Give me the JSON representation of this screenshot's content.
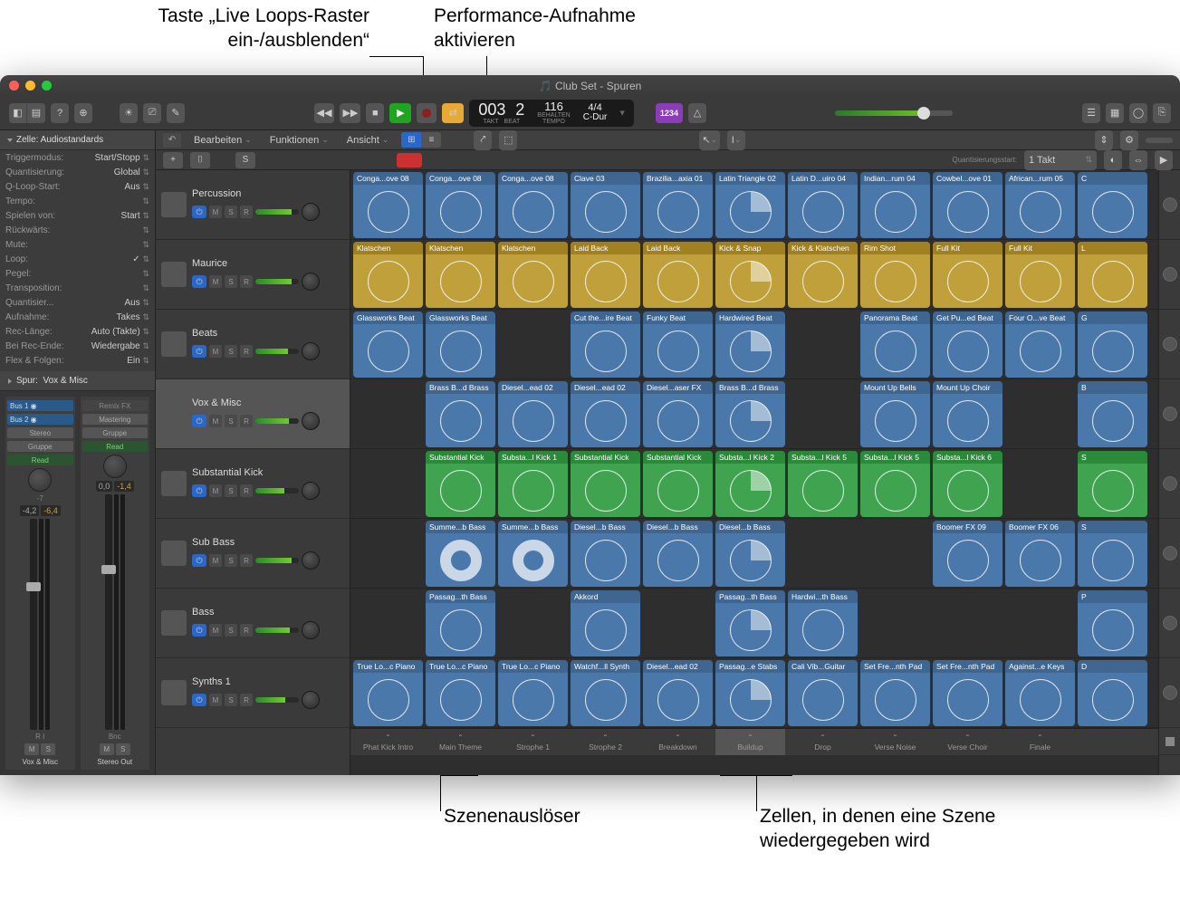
{
  "annotations": {
    "top_left": "Taste „Live Loops-Raster\nein-/ausblenden“",
    "top_right": "Performance-Aufnahme\naktivieren",
    "bottom_left": "Szenenauslöser",
    "bottom_right": "Zellen, in denen eine Szene\nwiedergegeben wird"
  },
  "window": {
    "title": "Club Set - Spuren"
  },
  "lcd": {
    "bars": "003",
    "beat": "2",
    "tempo": "116",
    "tempo_sub": "Behalten",
    "sig": "4/4",
    "key": "C-Dur",
    "purple": "1234",
    "lbl_takt": "TAKT",
    "lbl_beat": "BEAT",
    "lbl_tempo": "TEMPO"
  },
  "inspector": {
    "header": "Zelle: Audiostandards",
    "rows": [
      {
        "l": "Triggermodus:",
        "v": "Start/Stopp"
      },
      {
        "l": "Quantisierung:",
        "v": "Global"
      },
      {
        "l": "Q-Loop-Start:",
        "v": "Aus"
      },
      {
        "l": "Tempo:",
        "v": ""
      },
      {
        "l": "Spielen von:",
        "v": "Start"
      },
      {
        "l": "Rückwärts:",
        "v": ""
      },
      {
        "l": "Mute:",
        "v": ""
      },
      {
        "l": "Loop:",
        "v": "✓"
      },
      {
        "l": "Pegel:",
        "v": ""
      },
      {
        "l": "Transposition:",
        "v": ""
      },
      {
        "l": "Quantisier...",
        "v": "Aus"
      },
      {
        "l": "Aufnahme:",
        "v": "Takes"
      },
      {
        "l": "Rec-Länge:",
        "v": "Auto (Takte)"
      },
      {
        "l": "Bei Rec-Ende:",
        "v": "Wiedergabe"
      },
      {
        "l": "Flex & Folgen:",
        "v": "Ein"
      }
    ],
    "spur_label": "Spur:",
    "spur_value": "Vox & Misc"
  },
  "channel_strips": [
    {
      "name": "Vox & Misc",
      "sends": [
        "Bus 1",
        "Bus 2"
      ],
      "io": "Stereo",
      "grp": "Gruppe",
      "auto": "Read",
      "pan": "-7",
      "db1": "-4,2",
      "db2": "-6,4",
      "bottom": "R  I"
    },
    {
      "name": "Stereo Out",
      "insert": "Mastering",
      "io": "",
      "grp": "Gruppe",
      "auto": "Read",
      "pan": "",
      "db1": "0,0",
      "db2": "-1,4",
      "bottom": "Bnc"
    }
  ],
  "menus": {
    "bearbeiten": "Bearbeiten",
    "funktionen": "Funktionen",
    "ansicht": "Ansicht",
    "quant_label": "Quantisierungsstart:",
    "quant_val": "1 Takt",
    "solo": "S"
  },
  "tracks": [
    {
      "name": "Percussion"
    },
    {
      "name": "Maurice"
    },
    {
      "name": "Beats"
    },
    {
      "name": "Vox & Misc",
      "sel": true
    },
    {
      "name": "Substantial Kick"
    },
    {
      "name": "Sub Bass"
    },
    {
      "name": "Bass"
    },
    {
      "name": "Synths 1"
    }
  ],
  "cell_rows": [
    [
      {
        "t": "Conga...ove 08",
        "c": "blue"
      },
      {
        "t": "Conga...ove 08",
        "c": "blue"
      },
      {
        "t": "Conga...ove 08",
        "c": "blue"
      },
      {
        "t": "Clave 03",
        "c": "blue"
      },
      {
        "t": "Brazilia...axia 01",
        "c": "blue"
      },
      {
        "t": "Latin Triangle 02",
        "c": "blue",
        "p": 1
      },
      {
        "t": "Latin D...uiro 04",
        "c": "blue"
      },
      {
        "t": "Indian...rum 04",
        "c": "blue"
      },
      {
        "t": "Cowbel...ove 01",
        "c": "blue"
      },
      {
        "t": "African...rum 05",
        "c": "blue"
      },
      {
        "t": "C",
        "c": "blue"
      }
    ],
    [
      {
        "t": "Klatschen",
        "c": "yellow"
      },
      {
        "t": "Klatschen",
        "c": "yellow"
      },
      {
        "t": "Klatschen",
        "c": "yellow"
      },
      {
        "t": "Laid Back",
        "c": "yellow"
      },
      {
        "t": "Laid Back",
        "c": "yellow"
      },
      {
        "t": "Kick & Snap",
        "c": "yellow",
        "p": 1
      },
      {
        "t": "Kick & Klatschen",
        "c": "yellow"
      },
      {
        "t": "Rim Shot",
        "c": "yellow"
      },
      {
        "t": "Full Kit",
        "c": "yellow"
      },
      {
        "t": "Full Kit",
        "c": "yellow"
      },
      {
        "t": "L",
        "c": "yellow"
      }
    ],
    [
      {
        "t": "Glassworks Beat",
        "c": "blue"
      },
      {
        "t": "Glassworks Beat",
        "c": "blue"
      },
      {
        "c": "empty"
      },
      {
        "t": "Cut the...ire Beat",
        "c": "blue"
      },
      {
        "t": "Funky Beat",
        "c": "blue"
      },
      {
        "t": "Hardwired Beat",
        "c": "blue",
        "p": 1
      },
      {
        "c": "empty"
      },
      {
        "t": "Panorama Beat",
        "c": "blue"
      },
      {
        "t": "Get Pu...ed Beat",
        "c": "blue"
      },
      {
        "t": "Four O...ve Beat",
        "c": "blue"
      },
      {
        "t": "G",
        "c": "blue"
      }
    ],
    [
      {
        "c": "empty"
      },
      {
        "t": "Brass B...d Brass",
        "c": "blue"
      },
      {
        "t": "Diesel...ead 02",
        "c": "blue"
      },
      {
        "t": "Diesel...ead 02",
        "c": "blue"
      },
      {
        "t": "Diesel...aser FX",
        "c": "blue"
      },
      {
        "t": "Brass B...d Brass",
        "c": "blue",
        "p": 1
      },
      {
        "c": "empty"
      },
      {
        "t": "Mount Up Bells",
        "c": "blue"
      },
      {
        "t": "Mount Up Choir",
        "c": "blue"
      },
      {
        "c": "empty"
      },
      {
        "t": "B",
        "c": "blue"
      }
    ],
    [
      {
        "c": "empty"
      },
      {
        "t": "Substantial Kick",
        "c": "green"
      },
      {
        "t": "Substa...l Kick 1",
        "c": "green"
      },
      {
        "t": "Substantial Kick",
        "c": "green"
      },
      {
        "t": "Substantial Kick",
        "c": "green"
      },
      {
        "t": "Substa...l Kick 2",
        "c": "green",
        "p": 1
      },
      {
        "t": "Substa...l Kick 5",
        "c": "green"
      },
      {
        "t": "Substa...l Kick 5",
        "c": "green"
      },
      {
        "t": "Substa...l Kick 6",
        "c": "green"
      },
      {
        "c": "empty"
      },
      {
        "t": "S",
        "c": "green"
      }
    ],
    [
      {
        "c": "empty"
      },
      {
        "t": "Summe...b Bass",
        "c": "blue",
        "d": 1
      },
      {
        "t": "Summe...b Bass",
        "c": "blue",
        "d": 1
      },
      {
        "t": "Diesel...b Bass",
        "c": "blue"
      },
      {
        "t": "Diesel...b Bass",
        "c": "blue"
      },
      {
        "t": "Diesel...b Bass",
        "c": "blue",
        "p": 1
      },
      {
        "c": "empty"
      },
      {
        "c": "empty"
      },
      {
        "t": "Boomer FX 09",
        "c": "blue"
      },
      {
        "t": "Boomer FX 06",
        "c": "blue"
      },
      {
        "t": "S",
        "c": "blue"
      }
    ],
    [
      {
        "c": "empty"
      },
      {
        "t": "Passag...th Bass",
        "c": "blue"
      },
      {
        "c": "empty"
      },
      {
        "t": "Akkord",
        "c": "blue"
      },
      {
        "c": "empty"
      },
      {
        "t": "Passag...th Bass",
        "c": "blue",
        "p": 1
      },
      {
        "t": "Hardwi...th Bass",
        "c": "blue"
      },
      {
        "c": "empty"
      },
      {
        "c": "empty"
      },
      {
        "c": "empty"
      },
      {
        "t": "P",
        "c": "blue"
      }
    ],
    [
      {
        "t": "True Lo...c Piano",
        "c": "blue"
      },
      {
        "t": "True Lo...c Piano",
        "c": "blue"
      },
      {
        "t": "True Lo...c Piano",
        "c": "blue"
      },
      {
        "t": "Watchf...ll Synth",
        "c": "blue"
      },
      {
        "t": "Diesel...ead 02",
        "c": "blue"
      },
      {
        "t": "Passag...e Stabs",
        "c": "blue",
        "p": 1
      },
      {
        "t": "Cali Vib...Guitar",
        "c": "blue"
      },
      {
        "t": "Set Fre...nth Pad",
        "c": "blue"
      },
      {
        "t": "Set Fre...nth Pad",
        "c": "blue"
      },
      {
        "t": "Against...e Keys",
        "c": "blue"
      },
      {
        "t": "D",
        "c": "blue"
      }
    ]
  ],
  "scenes": [
    "Phat Kick Intro",
    "Main Theme",
    "Strophe 1",
    "Strophe 2",
    "Breakdown",
    "Buildup",
    "Drop",
    "Verse Noise",
    "Verse Choir",
    "Finale"
  ],
  "scene_hl": 5,
  "colors": {
    "blue": "#4a78aa",
    "yellow": "#bfa03a",
    "green": "#3fa34f",
    "toolbar": "#3a3a3a",
    "accent": "#2968c8"
  },
  "msr": {
    "m": "M",
    "s": "S",
    "r": "R"
  },
  "remix_fx": "Remix FX"
}
